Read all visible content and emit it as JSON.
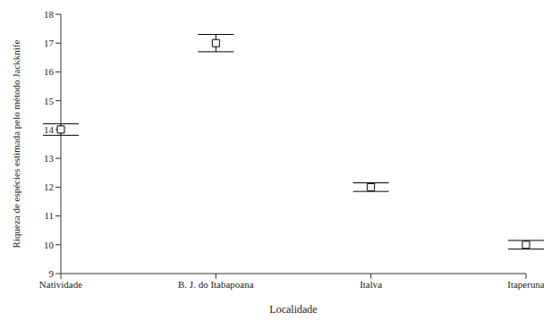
{
  "chart_data": {
    "type": "scatter",
    "x_label": "Localidade",
    "y_label": "Riqueza de espécies estimada pelo método Jackknife",
    "categories": [
      "Natividade",
      "B. J. do Itabapoana",
      "Italva",
      "Itaperuna"
    ],
    "values": [
      14,
      17,
      12,
      10
    ],
    "errors": [
      0.2,
      0.3,
      0.15,
      0.15
    ],
    "color": "#000000",
    "marker": "square",
    "ylim": [
      9,
      18
    ],
    "yticks": [
      9,
      10,
      11,
      12,
      13,
      14,
      15,
      16,
      17,
      18
    ],
    "grid": false
  }
}
